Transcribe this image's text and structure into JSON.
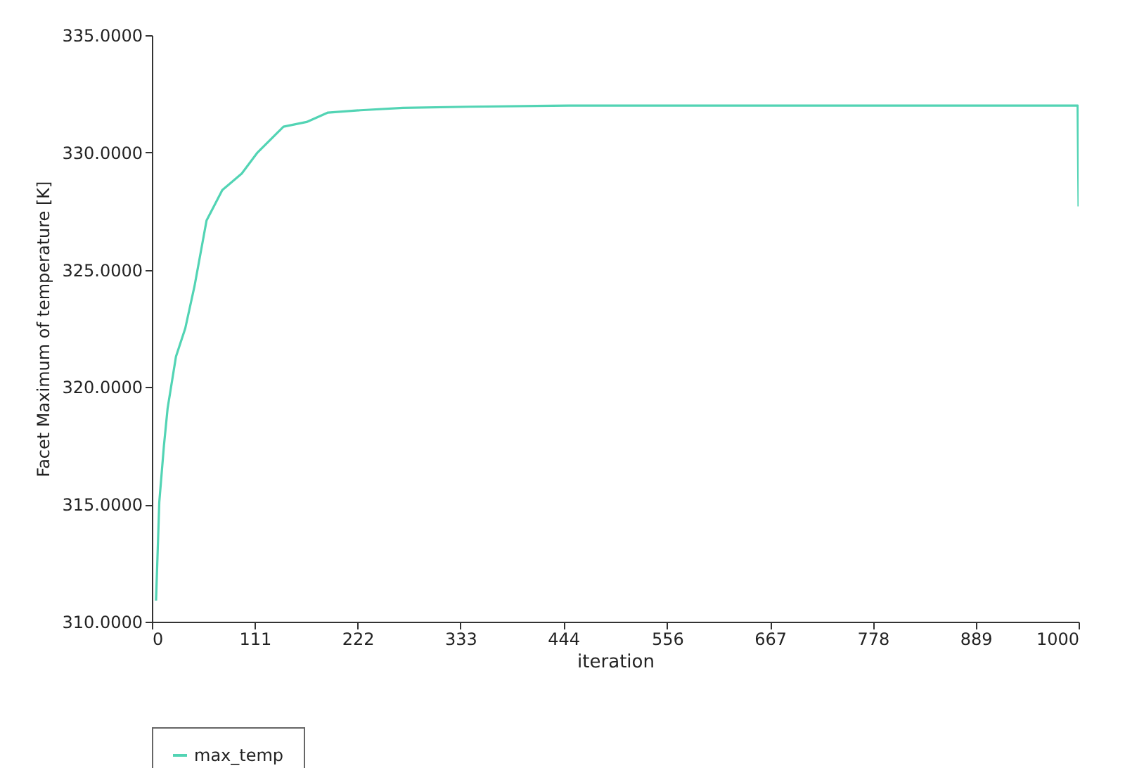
{
  "chart_data": {
    "type": "line",
    "xlabel": "iteration",
    "ylabel": "Facet Maximum of temperature [K]",
    "xlim": [
      0,
      1000
    ],
    "xticks": [
      0,
      111,
      222,
      333,
      444,
      556,
      667,
      778,
      889,
      1000
    ],
    "ylim": [
      310,
      335
    ],
    "yticks": [
      {
        "value": 310,
        "label": "310.0000"
      },
      {
        "value": 315,
        "label": "315.0000"
      },
      {
        "value": 320,
        "label": "320.0000"
      },
      {
        "value": 325,
        "label": "325.0000"
      },
      {
        "value": 330,
        "label": "330.0000"
      },
      {
        "value": 335,
        "label": "335.0000"
      }
    ],
    "grid": false,
    "legend": "bottom",
    "series": [
      {
        "name": "max_temp",
        "color": "#52d4b4",
        "x": [
          4.5,
          8,
          13,
          17,
          26,
          36,
          46,
          59,
          76,
          97,
          114,
          142,
          167,
          190,
          225,
          271,
          342,
          450,
          600,
          800,
          999,
          1000
        ],
        "values": [
          310.9,
          315.1,
          317.5,
          319.1,
          321.3,
          322.5,
          324.3,
          327.1,
          328.4,
          329.1,
          330.0,
          331.1,
          331.3,
          331.7,
          331.8,
          331.9,
          331.95,
          332.0,
          332.0,
          332.0,
          332.0,
          327.7
        ]
      }
    ]
  }
}
